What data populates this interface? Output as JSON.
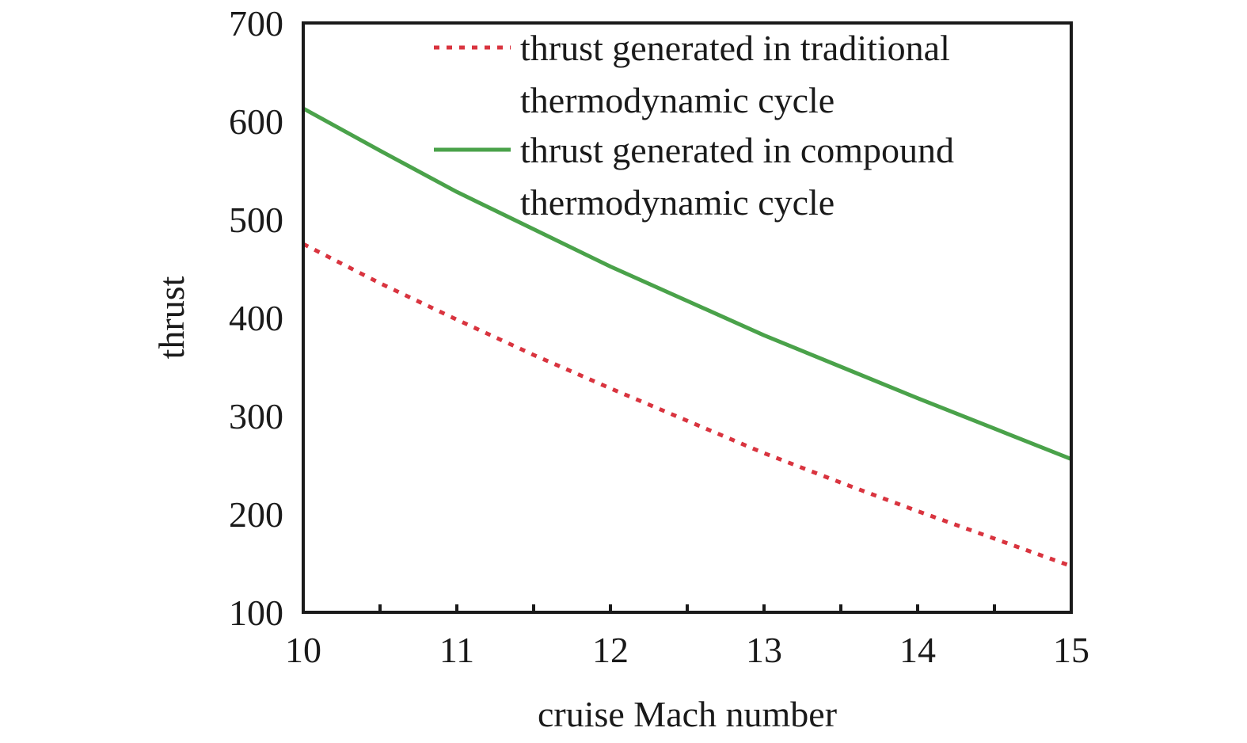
{
  "chart_data": {
    "type": "line",
    "title": "",
    "xlabel": "cruise Mach number",
    "ylabel": "thrust",
    "xlim": [
      10,
      15
    ],
    "ylim": [
      100,
      700
    ],
    "x_ticks": [
      "10",
      "11",
      "12",
      "13",
      "14",
      "15"
    ],
    "y_ticks": [
      "100",
      "200",
      "300",
      "400",
      "500",
      "600",
      "700"
    ],
    "grid": false,
    "legend_placement": "top-right",
    "series": [
      {
        "name_lines": [
          "thrust generated in traditional",
          "thermodynamic cycle"
        ],
        "color": "#d9343f",
        "style": "dotted",
        "x": [
          10,
          10.5,
          11,
          11.5,
          12,
          12.5,
          13,
          13.5,
          14,
          14.5,
          15
        ],
        "y": [
          475,
          435,
          398,
          362,
          328,
          295,
          262,
          232,
          203,
          175,
          147
        ]
      },
      {
        "name_lines": [
          "thrust generated in compound",
          "thermodynamic cycle"
        ],
        "color": "#4aa24a",
        "style": "solid",
        "x": [
          10,
          10.5,
          11,
          11.5,
          12,
          12.5,
          13,
          13.5,
          14,
          14.5,
          15
        ],
        "y": [
          613,
          570,
          528,
          490,
          452,
          417,
          382,
          350,
          318,
          287,
          256
        ]
      }
    ]
  }
}
